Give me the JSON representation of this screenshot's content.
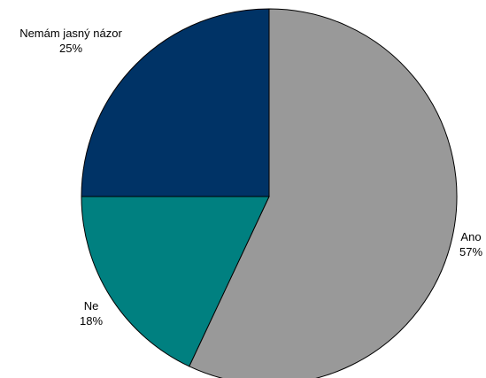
{
  "chart_data": {
    "type": "pie",
    "title": "",
    "slices": [
      {
        "label": "Ano",
        "value": 57,
        "value_text": "57%",
        "color": "#999999"
      },
      {
        "label": "Ne",
        "value": 18,
        "value_text": "18%",
        "color": "#008080"
      },
      {
        "label": "Nemám jasný názor",
        "value": 25,
        "value_text": "25%",
        "color": "#003366"
      }
    ],
    "start_angle": "12 o'clock",
    "direction": "clockwise",
    "slice_border_color": "#000000",
    "legend": "none",
    "labels": "outside"
  }
}
